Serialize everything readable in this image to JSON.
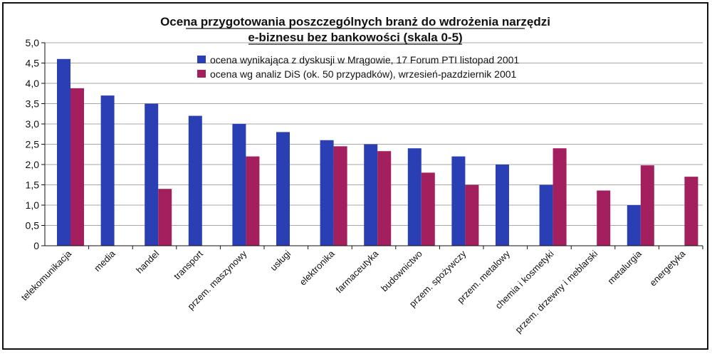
{
  "chart_data": {
    "type": "bar",
    "title_line1": "Ocena przygotowania poszczególnych branż do wdrożenia narzędzi",
    "title_line2": "e-biznesu bez bankowości (skala 0-5)",
    "ylim": [
      0,
      5
    ],
    "yticks": [
      "0",
      "0,5",
      "1,0",
      "1,5",
      "2,0",
      "2,5",
      "3,0",
      "3,5",
      "4,0",
      "4,5",
      "5,0"
    ],
    "grid": true,
    "legend_position": "top-right",
    "categories": [
      "telekomunikacja",
      "media",
      "handel",
      "transport",
      "przem. maszynowy",
      "usługi",
      "elektronika",
      "farmaceutyka",
      "budownictwo",
      "przem. spożywczy",
      "przem. metalowy",
      "chemia i kosmetyki",
      "przem. drzewny i meblarski",
      "metalurgia",
      "energetyka"
    ],
    "series": [
      {
        "name": "ocena wynikająca z dyskusji w Mrągowie, 17 Forum PTI listopad 2001",
        "color": "#2b3fb4",
        "values": [
          4.6,
          3.7,
          3.5,
          3.2,
          3.0,
          2.8,
          2.6,
          2.5,
          2.4,
          2.2,
          2.0,
          1.5,
          null,
          1.0,
          null
        ]
      },
      {
        "name": "ocena wg analiz DiS (ok. 50 przypadków), wrzesień-pazdziernik 2001",
        "color": "#a31f5e",
        "values": [
          3.88,
          null,
          1.4,
          null,
          2.2,
          null,
          2.45,
          2.33,
          1.8,
          1.5,
          null,
          2.4,
          1.36,
          1.98,
          1.7
        ]
      }
    ]
  }
}
